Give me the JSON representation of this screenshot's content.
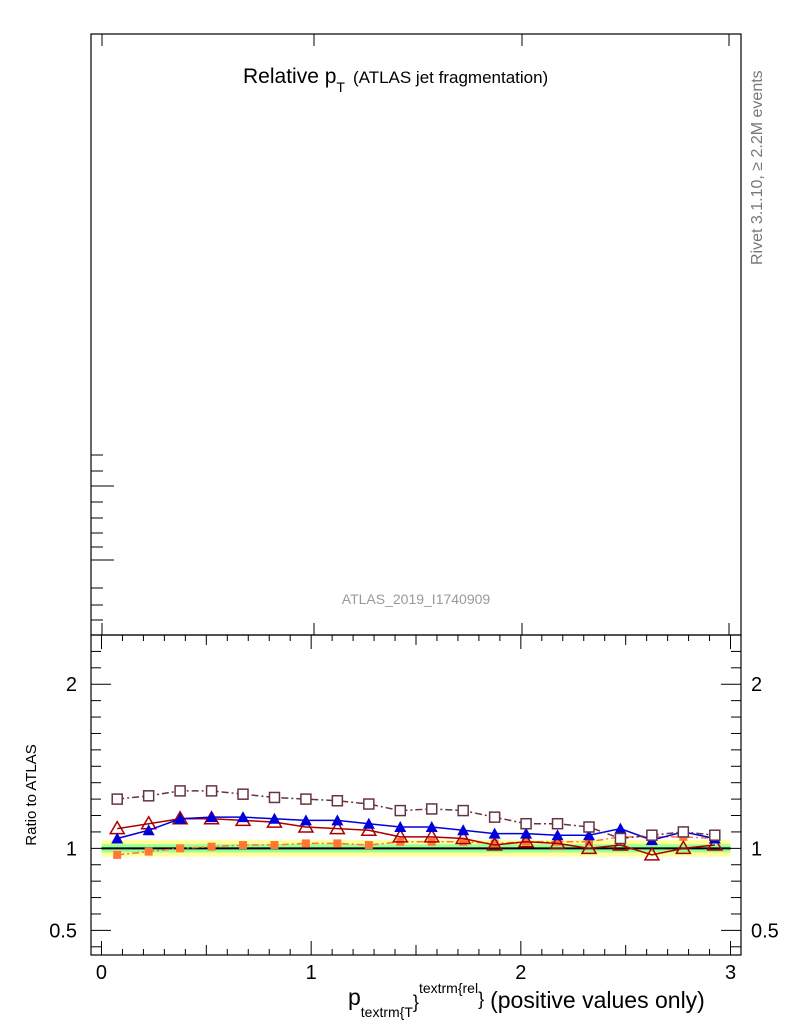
{
  "main": {
    "title_main": "Relative p",
    "title_sub": "T",
    "title_rest": "(ATLAS jet fragmentation)",
    "analysis_id": "ATLAS_2019_I1740909",
    "side_label_a": "Rivet 3.1.10, ",
    "side_label_b": "≥",
    "side_label_c": " 2.2M events"
  },
  "ratio": {
    "ylabel": "Ratio to ATLAS"
  },
  "xaxis": {
    "label_p": "p",
    "label_sub": "textrm{T",
    "label_brace1": "}",
    "label_sup": "textrm{rel",
    "label_brace2": "}",
    "label_rest": "(positive values only)"
  },
  "colors": {
    "reference": "#000000",
    "band_outer": "#ffff99",
    "band_inner": "#99ff99",
    "series_orange": "#ff7733",
    "series_red": "#aa0000",
    "series_blue": "#0000dd",
    "series_purple": "#663344"
  },
  "chart_data": {
    "type": "line",
    "xlim": [
      -0.05,
      3.05
    ],
    "ratio_ylim": [
      0.35,
      2.3
    ],
    "ratio_yscale": "linear",
    "x": [
      0.075,
      0.225,
      0.375,
      0.525,
      0.675,
      0.825,
      0.975,
      1.125,
      1.275,
      1.425,
      1.575,
      1.725,
      1.875,
      2.025,
      2.175,
      2.325,
      2.475,
      2.625,
      2.775,
      2.925
    ],
    "x_ticks": [
      "0",
      "1",
      "2",
      "3"
    ],
    "ratio_y_ticks": [
      "0.5",
      "1",
      "2"
    ],
    "reference_line": 1.0,
    "uncertainty_band": {
      "outer": [
        0.95,
        1.05
      ],
      "inner": [
        0.975,
        1.025
      ]
    },
    "series": [
      {
        "values": [
          0.96,
          0.98,
          1.0,
          1.01,
          1.02,
          1.02,
          1.03,
          1.03,
          1.02,
          1.04,
          1.04,
          1.04,
          1.03,
          1.04,
          1.04,
          1.04,
          1.07,
          1.07,
          1.07,
          1.06
        ],
        "color": "#ff7733",
        "marker": "filled-square",
        "dash": "dashdot"
      },
      {
        "values": [
          1.12,
          1.15,
          1.18,
          1.18,
          1.17,
          1.16,
          1.13,
          1.12,
          1.11,
          1.07,
          1.07,
          1.06,
          1.02,
          1.04,
          1.03,
          1.0,
          1.02,
          0.96,
          1.0,
          1.02
        ],
        "color": "#aa0000",
        "marker": "open-triangle",
        "dash": "solid"
      },
      {
        "values": [
          1.06,
          1.11,
          1.18,
          1.19,
          1.19,
          1.18,
          1.17,
          1.17,
          1.15,
          1.13,
          1.13,
          1.11,
          1.09,
          1.09,
          1.08,
          1.08,
          1.12,
          1.05,
          1.1,
          1.06
        ],
        "color": "#0000dd",
        "marker": "filled-triangle",
        "dash": "solid"
      },
      {
        "values": [
          1.3,
          1.32,
          1.35,
          1.35,
          1.33,
          1.31,
          1.3,
          1.29,
          1.27,
          1.23,
          1.24,
          1.23,
          1.19,
          1.15,
          1.15,
          1.13,
          1.06,
          1.08,
          1.1,
          1.08
        ],
        "color": "#663344",
        "marker": "open-square",
        "dash": "dashdot"
      }
    ]
  }
}
